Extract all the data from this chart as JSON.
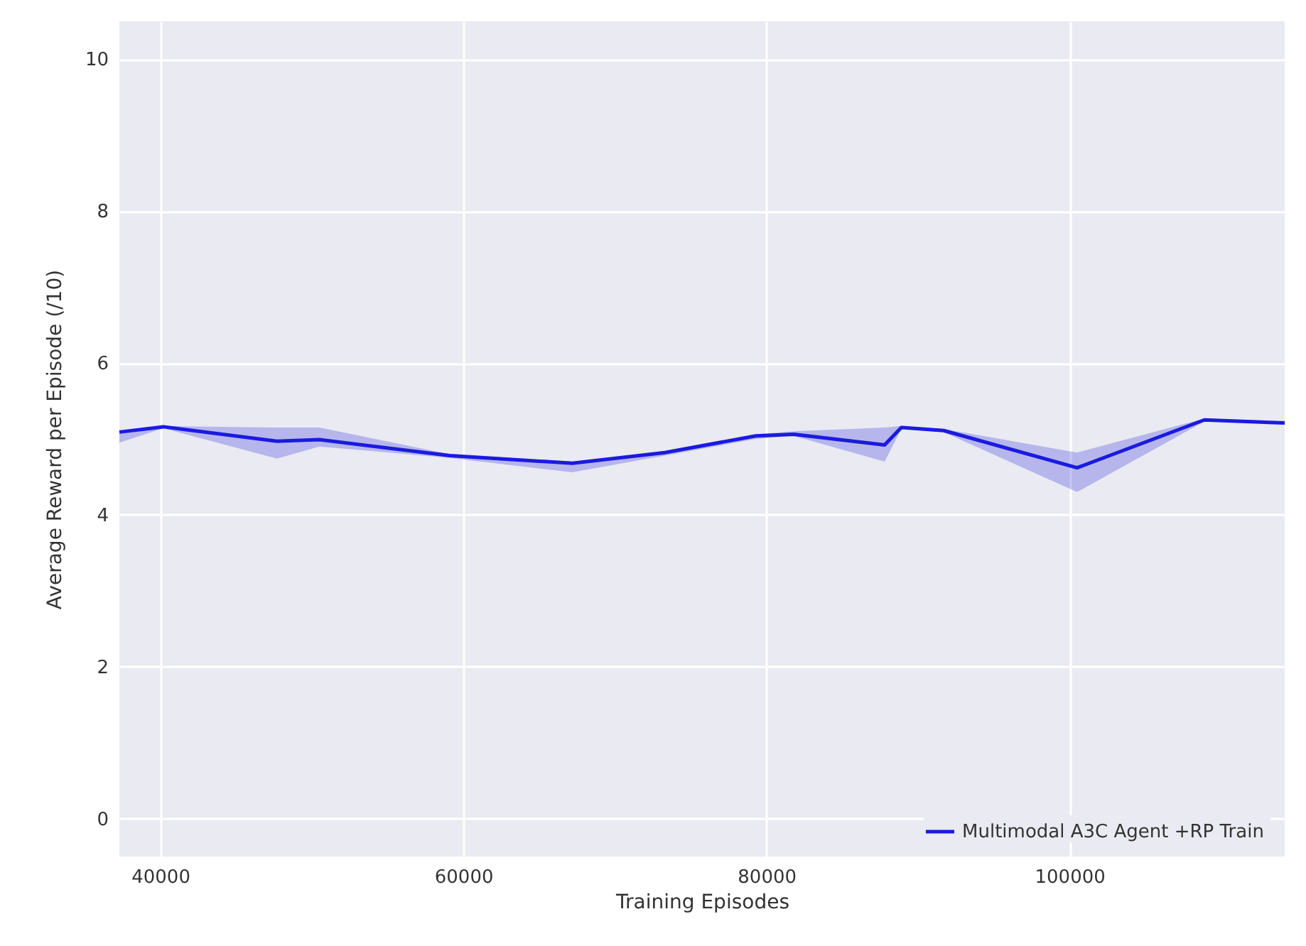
{
  "chart_data": {
    "type": "line",
    "xlabel": "Training Episodes",
    "ylabel": "Average Reward per Episode (/10)",
    "x": [
      37300,
      40200,
      47700,
      50500,
      59100,
      67200,
      73300,
      79300,
      81800,
      87800,
      88900,
      91700,
      100500,
      108900,
      114200
    ],
    "series": [
      {
        "name": "Multimodal A3C Agent +RP  Train",
        "color": "#1a1ae0",
        "values": [
          5.09,
          5.16,
          4.97,
          4.99,
          4.78,
          4.68,
          4.82,
          5.04,
          5.06,
          4.92,
          5.15,
          5.11,
          4.62,
          5.25,
          5.21
        ],
        "lower": [
          4.95,
          5.14,
          4.74,
          4.9,
          4.75,
          4.56,
          4.78,
          5.0,
          5.04,
          4.7,
          5.13,
          5.09,
          4.3,
          5.23,
          5.2
        ],
        "upper": [
          5.1,
          5.17,
          5.15,
          5.15,
          4.8,
          4.7,
          4.83,
          5.06,
          5.1,
          5.15,
          5.17,
          5.13,
          4.82,
          5.27,
          5.23
        ]
      }
    ],
    "xlim": [
      37300,
      114200
    ],
    "xticks": [
      40000,
      60000,
      80000,
      100000
    ],
    "ylim": [
      -0.5,
      10.5
    ],
    "yticks": [
      0,
      2,
      4,
      6,
      8,
      10
    ],
    "grid": true,
    "legend": "bottom right",
    "line_style": "solid"
  }
}
